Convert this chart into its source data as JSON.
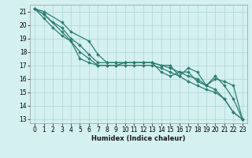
{
  "xlabel": "Humidex (Indice chaleur)",
  "bg_color": "#d4f0f0",
  "grid_color": "#aed4d4",
  "line_color": "#2e7d72",
  "xlim": [
    -0.5,
    23.5
  ],
  "ylim": [
    12.7,
    21.5
  ],
  "yticks": [
    13,
    14,
    15,
    16,
    17,
    18,
    19,
    20,
    21
  ],
  "xticks": [
    0,
    1,
    2,
    3,
    4,
    5,
    6,
    7,
    8,
    9,
    10,
    11,
    12,
    13,
    14,
    15,
    16,
    17,
    18,
    19,
    20,
    21,
    22,
    23
  ],
  "series1_x": [
    0,
    1,
    2,
    3,
    4,
    5,
    6,
    7,
    8,
    9,
    10,
    11,
    12,
    13,
    14,
    15,
    16,
    17,
    18,
    19,
    20,
    21,
    22,
    23
  ],
  "series1_y": [
    21.2,
    20.8,
    20.2,
    19.8,
    19.0,
    18.5,
    17.8,
    17.2,
    17.2,
    17.2,
    17.2,
    17.2,
    17.2,
    17.2,
    17.0,
    16.8,
    16.5,
    16.2,
    16.0,
    15.5,
    15.2,
    14.5,
    13.5,
    13.0
  ],
  "series2_x": [
    0,
    1,
    2,
    3,
    4,
    5,
    6,
    7,
    8,
    9,
    10,
    11,
    12,
    13,
    14,
    15,
    16,
    17,
    18,
    19,
    20,
    21,
    22,
    23
  ],
  "series2_y": [
    21.2,
    20.5,
    19.8,
    19.2,
    18.8,
    18.0,
    17.5,
    17.0,
    17.0,
    17.0,
    17.0,
    17.0,
    17.0,
    17.0,
    16.8,
    16.5,
    16.2,
    15.8,
    15.5,
    15.2,
    15.0,
    14.5,
    13.5,
    13.0
  ],
  "series3_x": [
    0,
    1,
    3,
    4,
    5,
    6,
    7,
    8,
    9,
    10,
    11,
    12,
    13,
    14,
    15,
    16,
    17,
    18,
    19,
    20,
    21,
    22,
    23
  ],
  "series3_y": [
    21.2,
    20.8,
    19.5,
    18.8,
    17.5,
    17.2,
    17.0,
    17.0,
    17.0,
    17.2,
    17.2,
    17.2,
    17.2,
    16.5,
    16.2,
    16.5,
    16.5,
    15.8,
    15.5,
    16.0,
    15.8,
    15.5,
    13.0
  ],
  "series4_x": [
    0,
    1,
    3,
    4,
    6,
    7,
    8,
    9,
    10,
    11,
    12,
    13,
    14,
    15,
    16,
    17,
    18,
    19,
    20,
    21,
    22,
    23
  ],
  "series4_y": [
    21.2,
    21.0,
    20.2,
    19.5,
    18.8,
    17.8,
    17.2,
    17.2,
    17.2,
    17.2,
    17.2,
    17.2,
    17.0,
    17.0,
    16.2,
    16.8,
    16.5,
    15.5,
    16.2,
    15.5,
    14.5,
    13.0
  ]
}
